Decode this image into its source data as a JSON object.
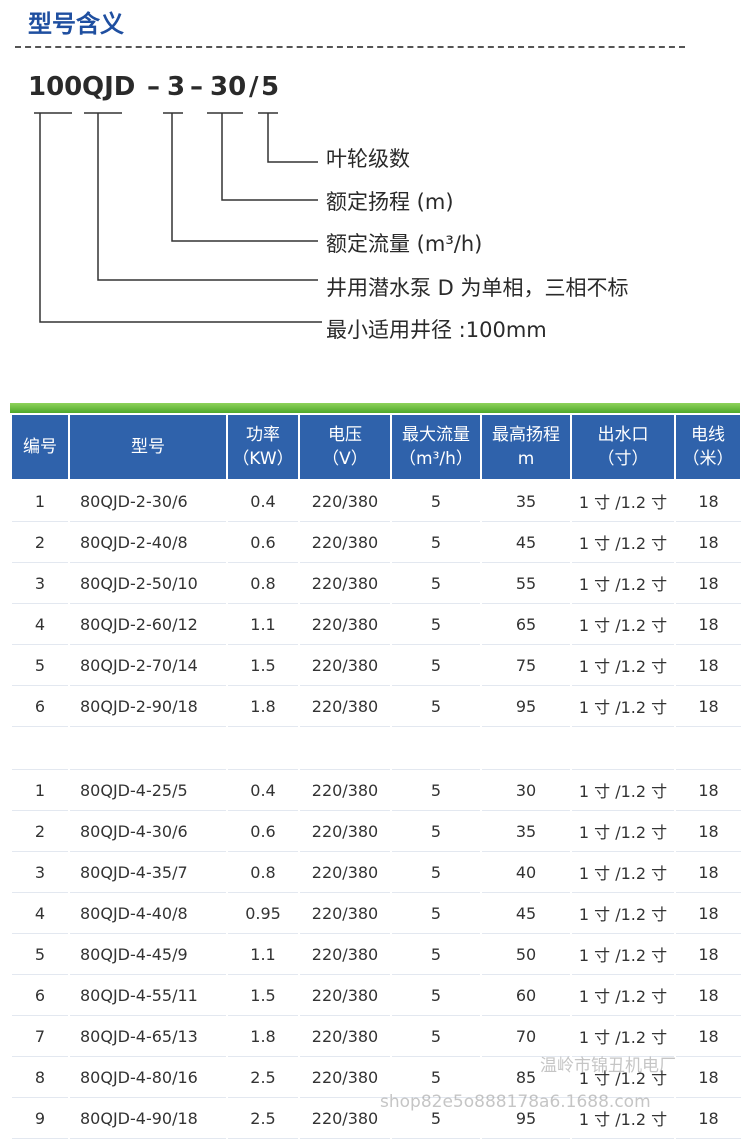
{
  "header": {
    "title": "型号含义"
  },
  "model_code": {
    "parts": [
      "100",
      "QJD",
      "–",
      "3",
      "–",
      "30",
      "/",
      "5"
    ]
  },
  "legend": [
    "叶轮级数",
    "额定扬程 (m)",
    "额定流量 (m³/h)",
    "井用潜水泵 D 为单相，三相不标",
    "最小适用井径 :100mm"
  ],
  "table": {
    "columns": [
      [
        "编号"
      ],
      [
        "型号"
      ],
      [
        "功率",
        "（KW）"
      ],
      [
        "电压",
        "（V）"
      ],
      [
        "最大流量",
        "（m³/h）"
      ],
      [
        "最高扬程",
        "m"
      ],
      [
        "出水口",
        "（寸）"
      ],
      [
        "电线",
        "（米）"
      ]
    ],
    "groups": [
      [
        [
          "1",
          "80QJD-2-30/6",
          "0.4",
          "220/380",
          "5",
          "35",
          "1 寸 /1.2 寸",
          "18"
        ],
        [
          "2",
          "80QJD-2-40/8",
          "0.6",
          "220/380",
          "5",
          "45",
          "1 寸 /1.2 寸",
          "18"
        ],
        [
          "3",
          "80QJD-2-50/10",
          "0.8",
          "220/380",
          "5",
          "55",
          "1 寸 /1.2 寸",
          "18"
        ],
        [
          "4",
          "80QJD-2-60/12",
          "1.1",
          "220/380",
          "5",
          "65",
          "1 寸 /1.2 寸",
          "18"
        ],
        [
          "5",
          "80QJD-2-70/14",
          "1.5",
          "220/380",
          "5",
          "75",
          "1 寸 /1.2 寸",
          "18"
        ],
        [
          "6",
          "80QJD-2-90/18",
          "1.8",
          "220/380",
          "5",
          "95",
          "1 寸 /1.2 寸",
          "18"
        ]
      ],
      [
        [
          "1",
          "80QJD-4-25/5",
          "0.4",
          "220/380",
          "5",
          "30",
          "1 寸 /1.2 寸",
          "18"
        ],
        [
          "2",
          "80QJD-4-30/6",
          "0.6",
          "220/380",
          "5",
          "35",
          "1 寸 /1.2 寸",
          "18"
        ],
        [
          "3",
          "80QJD-4-35/7",
          "0.8",
          "220/380",
          "5",
          "40",
          "1 寸 /1.2 寸",
          "18"
        ],
        [
          "4",
          "80QJD-4-40/8",
          "0.95",
          "220/380",
          "5",
          "45",
          "1 寸 /1.2 寸",
          "18"
        ],
        [
          "5",
          "80QJD-4-45/9",
          "1.1",
          "220/380",
          "5",
          "50",
          "1 寸 /1.2 寸",
          "18"
        ],
        [
          "6",
          "80QJD-4-55/11",
          "1.5",
          "220/380",
          "5",
          "60",
          "1 寸 /1.2 寸",
          "18"
        ],
        [
          "7",
          "80QJD-4-65/13",
          "1.8",
          "220/380",
          "5",
          "70",
          "1 寸 /1.2 寸",
          "18"
        ],
        [
          "8",
          "80QJD-4-80/16",
          "2.5",
          "220/380",
          "5",
          "85",
          "1 寸 /1.2 寸",
          "18"
        ],
        [
          "9",
          "80QJD-4-90/18",
          "2.5",
          "220/380",
          "5",
          "95",
          "1 寸 /1.2 寸",
          "18"
        ]
      ]
    ]
  },
  "watermark": [
    "温岭市锦丑机电厂",
    "shop82e5o888178a6.1688.com"
  ]
}
